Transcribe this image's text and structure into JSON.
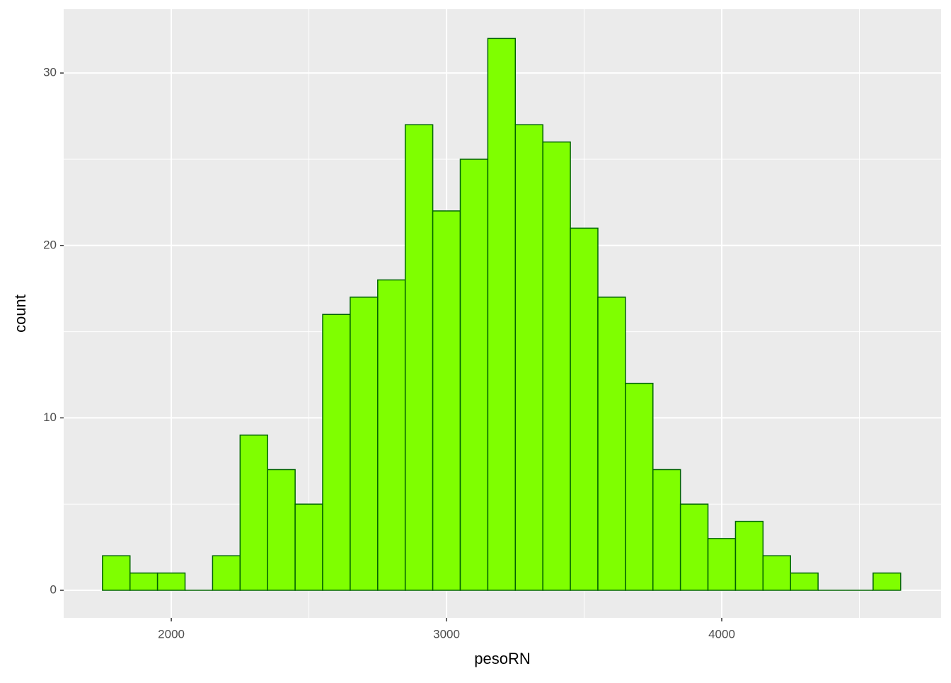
{
  "chart_data": {
    "type": "histogram",
    "x_label": "pesoRN",
    "y_label": "count",
    "bins": [
      1750,
      1850,
      1950,
      2050,
      2150,
      2250,
      2350,
      2450,
      2550,
      2650,
      2750,
      2850,
      2950,
      3050,
      3150,
      3250,
      3350,
      3450,
      3550,
      3650,
      3750,
      3850,
      3950,
      4050,
      4150,
      4250,
      4350,
      4450,
      4550,
      4650
    ],
    "values": [
      2,
      1,
      1,
      0,
      2,
      9,
      7,
      5,
      16,
      17,
      18,
      27,
      22,
      25,
      32,
      27,
      26,
      21,
      17,
      12,
      7,
      5,
      3,
      4,
      2,
      1,
      0,
      0,
      1
    ],
    "color": "#7fff00",
    "edge_color": "#006400",
    "xlim": [
      1609,
      4797
    ],
    "ylim": [
      -1.6,
      33.7
    ],
    "xticks": [
      2000,
      3000,
      4000
    ],
    "yticks": [
      0,
      10,
      20,
      30
    ],
    "grid": true,
    "minor_grid": true
  }
}
